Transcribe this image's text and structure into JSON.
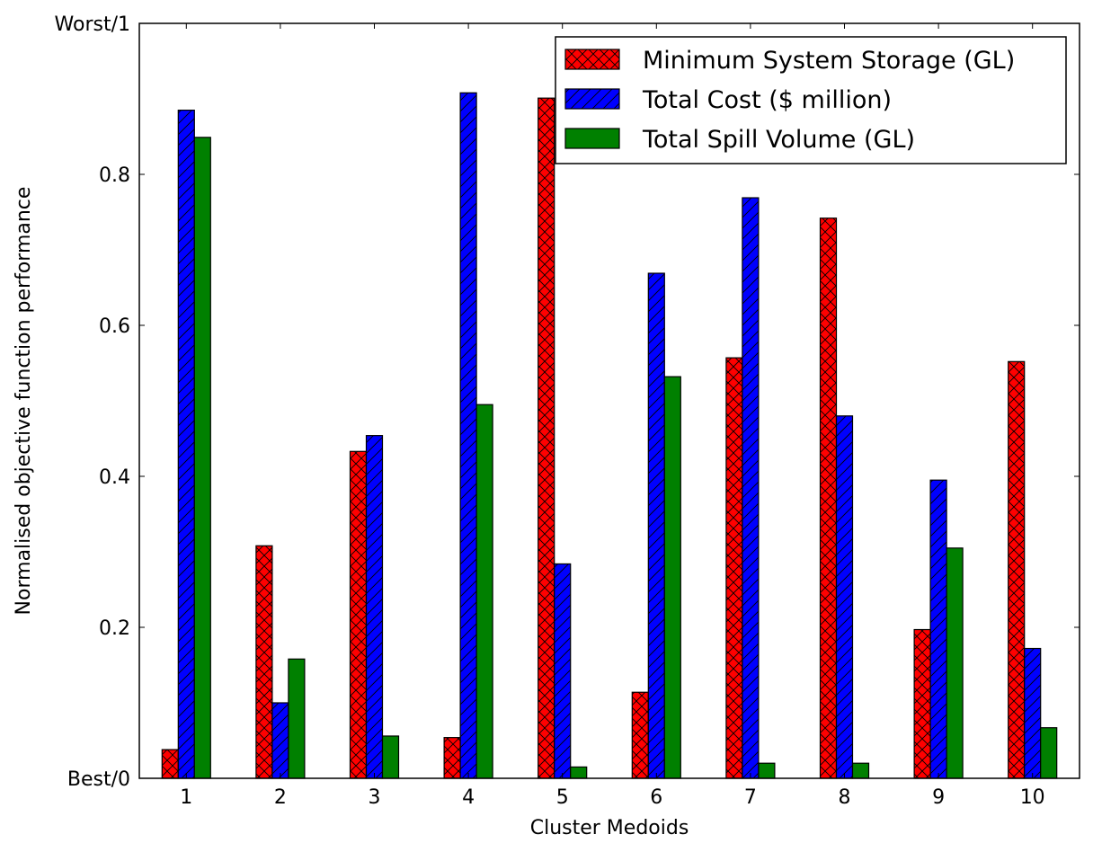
{
  "chart_data": {
    "type": "bar",
    "xlabel": "Cluster Medoids",
    "ylabel": "Normalised objective function performance",
    "categories": [
      "1",
      "2",
      "3",
      "4",
      "5",
      "6",
      "7",
      "8",
      "9",
      "10"
    ],
    "ylim": [
      0,
      1
    ],
    "yticks": [
      {
        "value": 0,
        "label": "Best/0"
      },
      {
        "value": 0.2,
        "label": "0.2"
      },
      {
        "value": 0.4,
        "label": "0.4"
      },
      {
        "value": 0.6,
        "label": "0.6"
      },
      {
        "value": 0.8,
        "label": "0.8"
      },
      {
        "value": 1,
        "label": "Worst/1"
      }
    ],
    "grid": false,
    "legend_position": "top-right",
    "series": [
      {
        "name": "Minimum System Storage (GL)",
        "color": "#ff0000",
        "hatch": "crosshatch",
        "values": [
          0.038,
          0.308,
          0.433,
          0.054,
          0.901,
          0.114,
          0.557,
          0.742,
          0.197,
          0.552
        ]
      },
      {
        "name": "Total Cost ($ million)",
        "color": "#0000ff",
        "hatch": "diagonal",
        "values": [
          0.885,
          0.1,
          0.454,
          0.908,
          0.284,
          0.669,
          0.769,
          0.48,
          0.395,
          0.172
        ]
      },
      {
        "name": "Total Spill Volume (GL)",
        "color": "#008000",
        "hatch": "none",
        "values": [
          0.849,
          0.158,
          0.056,
          0.495,
          0.015,
          0.532,
          0.02,
          0.02,
          0.305,
          0.067
        ]
      }
    ]
  }
}
